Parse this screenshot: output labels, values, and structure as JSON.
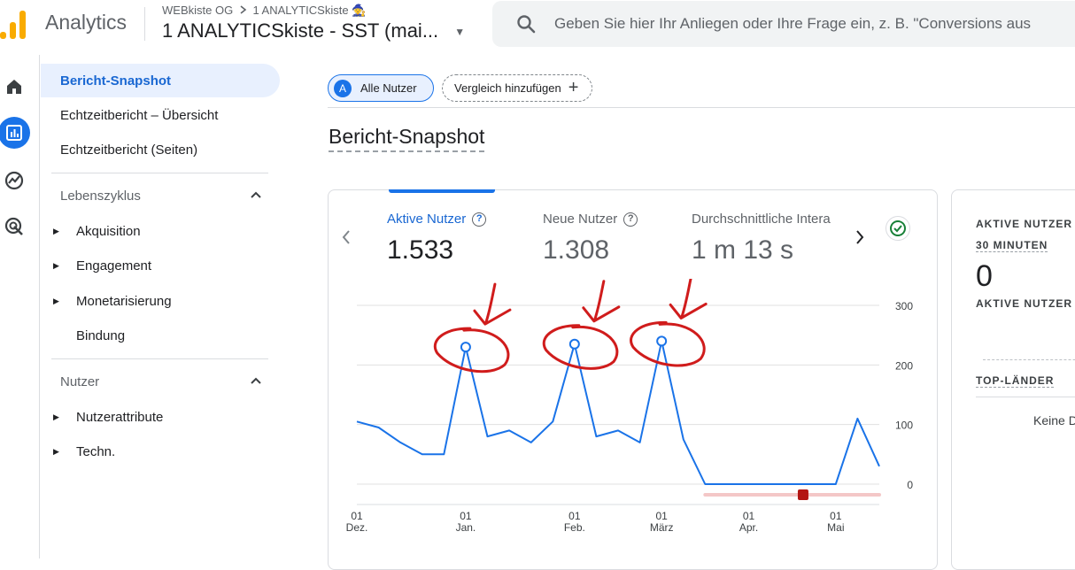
{
  "header": {
    "app_title": "Analytics",
    "breadcrumb_account": "WEBkiste OG",
    "breadcrumb_property": "1 ANALYTICSkiste 🧙",
    "property_name": "1 ANALYTICSkiste - SST (mai...",
    "search_placeholder": "Geben Sie hier Ihr Anliegen oder Ihre Frage ein, z. B. \"Conversions aus"
  },
  "rail": [
    "home-icon",
    "reports-icon",
    "explore-icon",
    "advertising-icon"
  ],
  "nav": {
    "items": [
      {
        "label": "Bericht-Snapshot"
      },
      {
        "label": "Echtzeitbericht – Übersicht"
      },
      {
        "label": "Echtzeitbericht (Seiten)"
      }
    ],
    "lifecycle": {
      "title": "Lebenszyklus",
      "items": [
        {
          "label": "Akquisition"
        },
        {
          "label": "Engagement"
        },
        {
          "label": "Monetarisierung"
        },
        {
          "label": "Bindung"
        }
      ]
    },
    "user": {
      "title": "Nutzer",
      "items": [
        {
          "label": "Nutzerattribute"
        },
        {
          "label": "Techn."
        }
      ]
    }
  },
  "filters": {
    "segment_badge": "A",
    "segment_label": "Alle Nutzer",
    "compare_label": "Vergleich hinzufügen"
  },
  "page_title": "Bericht-Snapshot",
  "metrics": [
    {
      "label": "Aktive Nutzer",
      "value": "1.533"
    },
    {
      "label": "Neue Nutzer",
      "value": "1.308"
    },
    {
      "label": "Durchschnittliche Intera",
      "value": "1 m 13 s"
    }
  ],
  "realtime": {
    "label_line1": "AKTIVE NUTZER I",
    "label_line2": "30 MINUTEN",
    "value": "0",
    "label_line3": "AKTIVE NUTZER P",
    "top_countries": "TOP-LÄNDER",
    "no_data": "Keine D"
  },
  "colors": {
    "accent": "#1a73e8",
    "series": "#1a73e8",
    "annotation": "#d01c1c",
    "range_bar": "#f4c7c7",
    "range_marker": "#b31412"
  },
  "chart_data": {
    "type": "line",
    "series": [
      {
        "values": [
          105,
          95,
          70,
          50,
          50,
          230,
          80,
          90,
          70,
          105,
          235,
          80,
          90,
          70,
          240,
          75,
          0,
          0,
          0,
          0,
          0,
          0,
          0,
          110,
          30
        ]
      }
    ],
    "x_ticks": [
      {
        "day": "01",
        "month": "Dez.",
        "index": 0
      },
      {
        "day": "01",
        "month": "Jan.",
        "index": 5
      },
      {
        "day": "01",
        "month": "Feb.",
        "index": 10
      },
      {
        "day": "01",
        "month": "März",
        "index": 14
      },
      {
        "day": "01",
        "month": "Apr.",
        "index": 18
      },
      {
        "day": "01",
        "month": "Mai",
        "index": 22
      }
    ],
    "y_ticks": [
      "300",
      "200",
      "100",
      "0"
    ],
    "ylim": [
      0,
      300
    ],
    "highlighted_points": [
      5,
      10,
      14
    ]
  }
}
